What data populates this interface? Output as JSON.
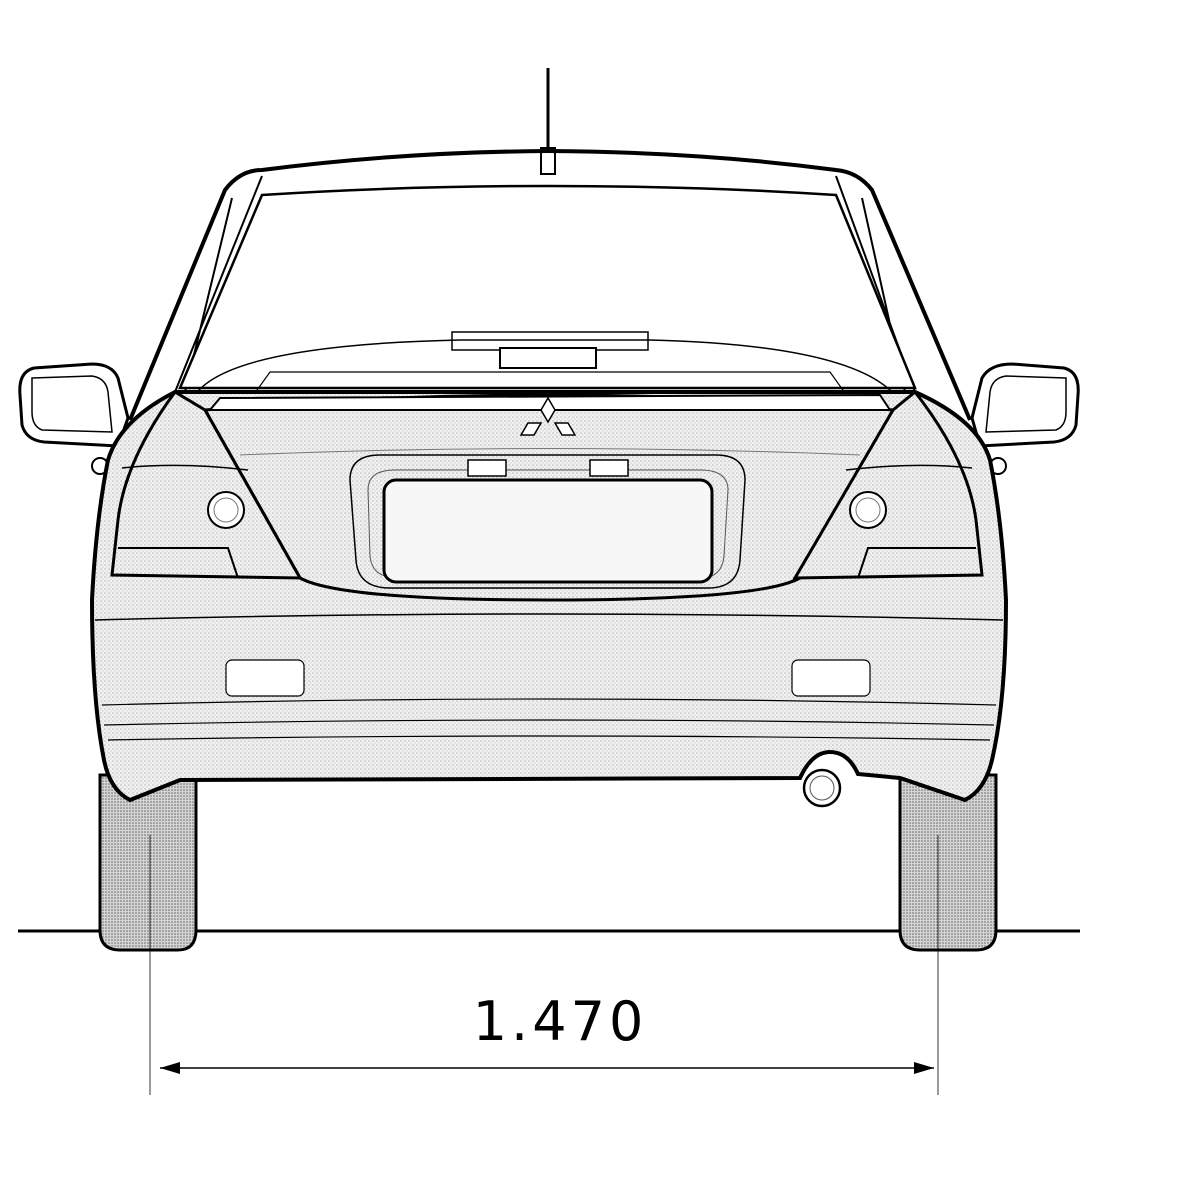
{
  "drawing": {
    "view": "rear",
    "track_width_label": "1.470",
    "line_color": "#000000",
    "shade_color": "#e6e6e6",
    "tire_shade_color": "#bfbfbf",
    "background": "#ffffff"
  }
}
